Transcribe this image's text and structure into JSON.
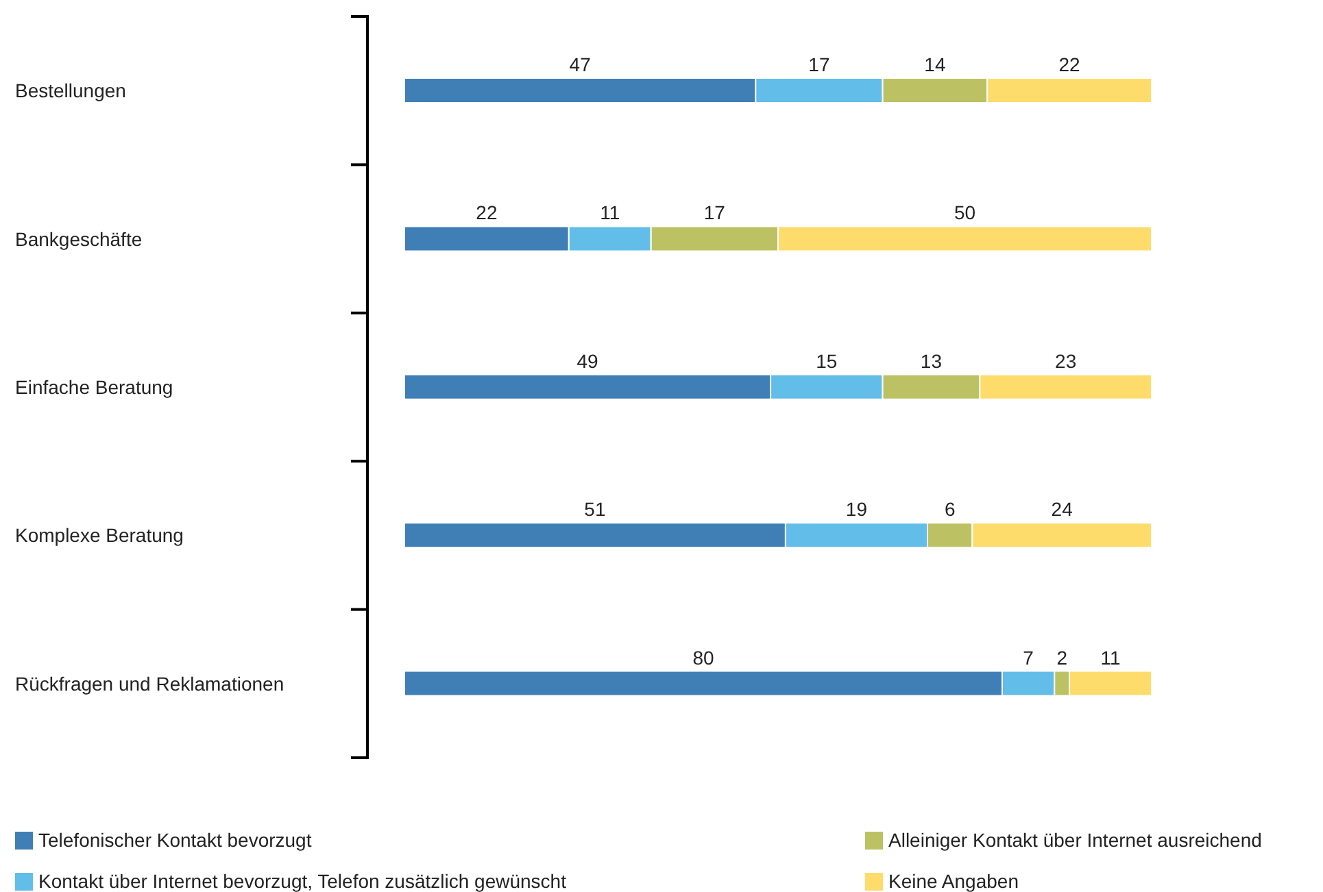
{
  "chart_data": {
    "type": "bar",
    "orientation": "horizontal",
    "stacked": true,
    "categories": [
      "Bestellungen",
      "Bankgeschäfte",
      "Einfache Beratung",
      "Komplexe Beratung",
      "Rückfragen und Reklamationen"
    ],
    "series": [
      {
        "name": "Telefonischer Kontakt bevorzugt",
        "color": "#3f7fb5",
        "values": [
          47,
          22,
          49,
          51,
          80
        ]
      },
      {
        "name": "Kontakt über Internet bevorzugt, Telefon zusätzlich gewünscht",
        "color": "#62bde8",
        "values": [
          17,
          11,
          15,
          19,
          7
        ]
      },
      {
        "name": "Alleiniger Kontakt über Internet ausreichend",
        "color": "#bcc263",
        "values": [
          14,
          17,
          13,
          6,
          2
        ]
      },
      {
        "name": "Keine Angaben",
        "color": "#fddc6b",
        "values": [
          22,
          50,
          23,
          24,
          11
        ]
      }
    ],
    "data_labels": true,
    "tick_labels": "y",
    "legend": "bottom"
  }
}
